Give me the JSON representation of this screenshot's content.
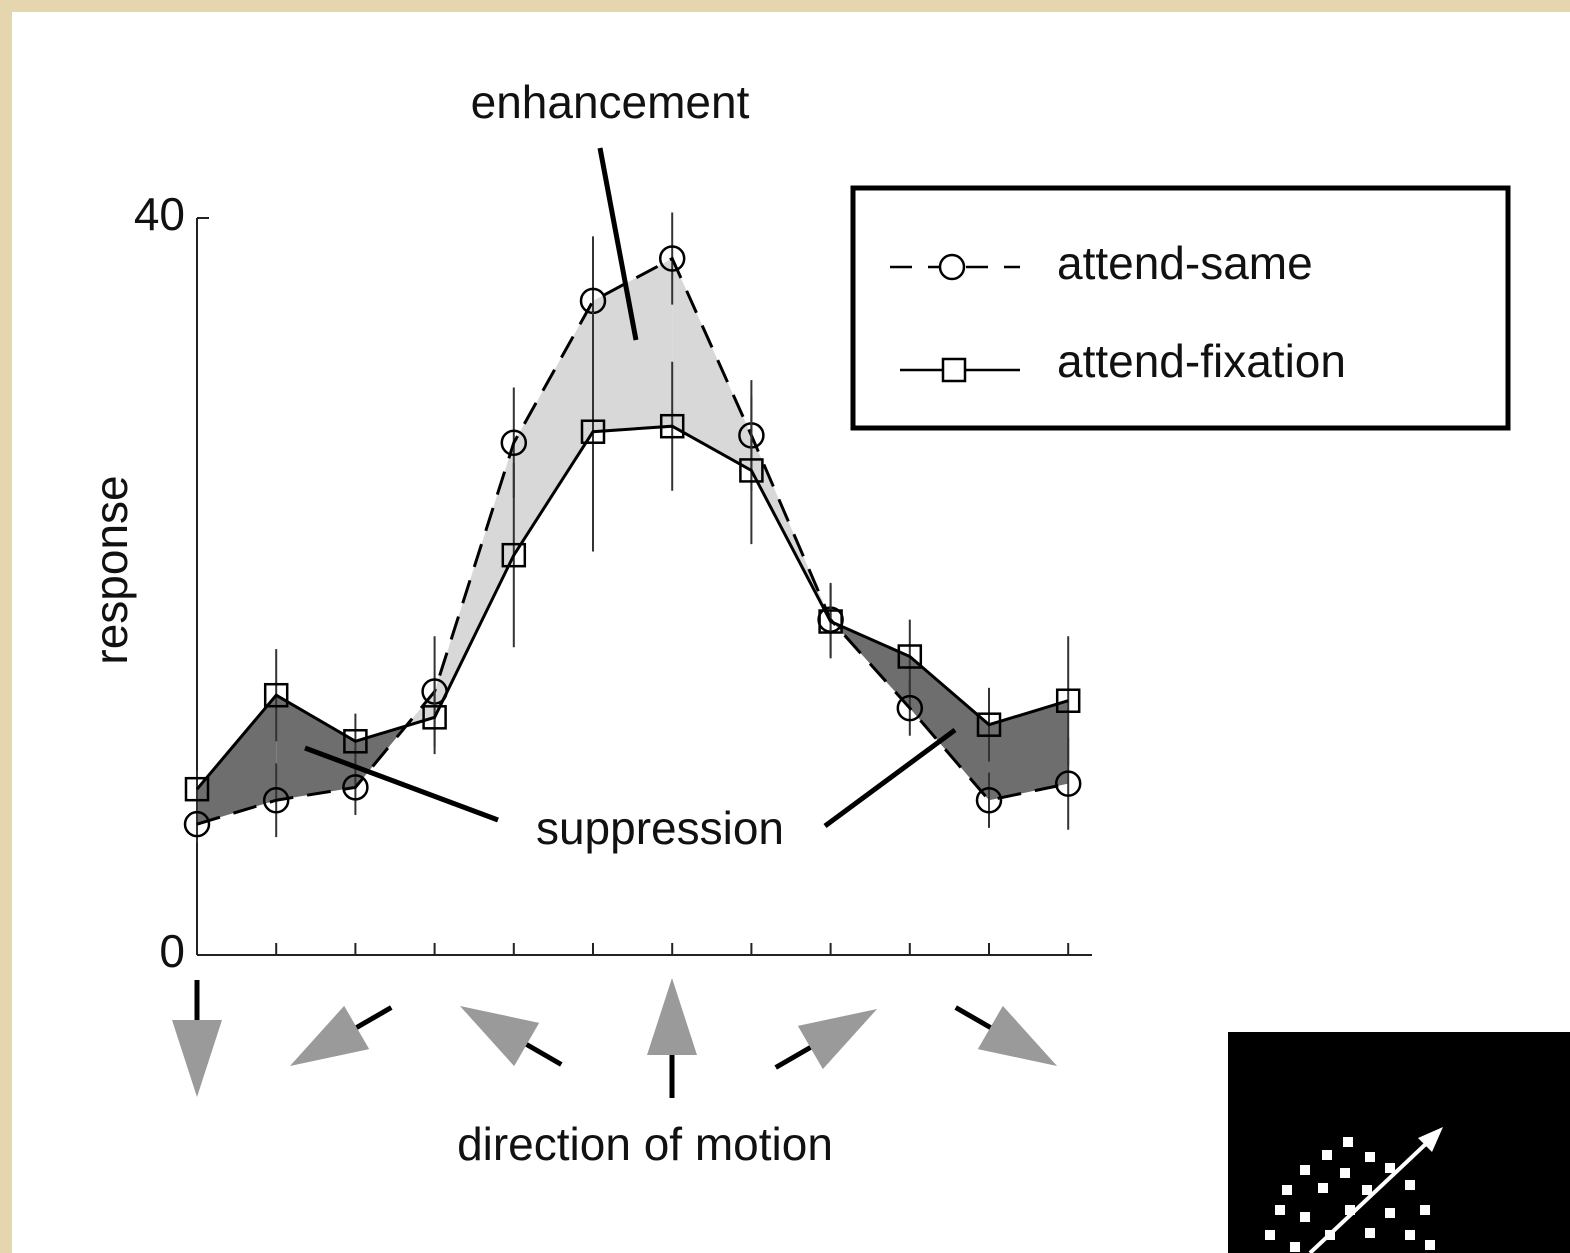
{
  "chart_data": {
    "type": "line",
    "xlabel": "direction of motion",
    "ylabel": "response",
    "categories": [
      null,
      null,
      null,
      null,
      null,
      null,
      null,
      null,
      null,
      null,
      null,
      null
    ],
    "ylim": [
      0,
      40
    ],
    "yticks": [
      0,
      40
    ],
    "series": [
      {
        "name": "attend-same",
        "color": "#000000",
        "dash": true,
        "marker": "circle",
        "values": [
          7.1,
          8.4,
          9.1,
          14.3,
          27.8,
          35.5,
          37.8,
          28.2,
          18.2,
          13.4,
          8.4,
          9.3
        ],
        "errors": [
          1,
          2,
          1.5,
          3,
          3,
          3.5,
          2.5,
          3,
          2,
          1.5,
          1.5,
          2.5
        ]
      },
      {
        "name": "attend-fixation",
        "color": "#000000",
        "dash": false,
        "marker": "square",
        "values": [
          9.0,
          14.1,
          11.6,
          12.9,
          21.7,
          28.4,
          28.7,
          26.3,
          18.1,
          16.2,
          12.5,
          13.8
        ],
        "errors": [
          1,
          2.5,
          1.5,
          2,
          5,
          6.5,
          3.5,
          4,
          2,
          2,
          2,
          3.5
        ]
      }
    ],
    "enhancement_color": "#d8d8d8",
    "suppression_color": "#6e6e6e",
    "annotations": [
      "enhancement",
      "suppression"
    ]
  }
}
